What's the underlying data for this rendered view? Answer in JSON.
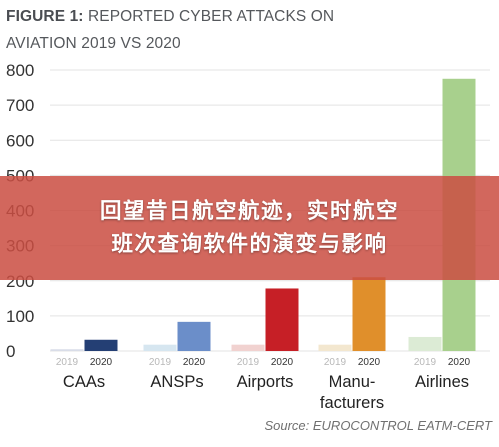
{
  "header": {
    "figure_label": "FIGURE 1:",
    "title_line1_rest": "REPORTED CYBER ATTACKS ON",
    "title_line2": "AVIATION 2019 VS 2020"
  },
  "source": "Source: EUROCONTROL EATM-CERT",
  "banner": {
    "line1": "回望昔日航空航迹，实时航空",
    "line2": "班次查询软件的演变与影响",
    "color": "#cb4e42"
  },
  "chart_data": {
    "type": "bar",
    "title": "FIGURE 1: REPORTED CYBER ATTACKS ON AVIATION 2019 VS 2020",
    "categories": [
      [
        "CAAs"
      ],
      [
        "ANSPs"
      ],
      [
        "Airports"
      ],
      [
        "Manu-",
        "facturers"
      ],
      [
        "Airlines"
      ]
    ],
    "year_labels": [
      "2019",
      "2020"
    ],
    "series": [
      {
        "name": "2019",
        "values": [
          5,
          18,
          18,
          18,
          40
        ]
      },
      {
        "name": "2020",
        "values": [
          32,
          83,
          178,
          210,
          775
        ]
      }
    ],
    "colors_2019": [
      "#d9dde8",
      "#d6e6f0",
      "#f1d2d0",
      "#f3e7cf",
      "#dcebd5"
    ],
    "colors_2020": [
      "#243f74",
      "#6b8ec9",
      "#c61f26",
      "#e08f2b",
      "#a8d08d"
    ],
    "ylim": [
      0,
      800
    ],
    "yticks": [
      0,
      100,
      200,
      300,
      400,
      500,
      600,
      700,
      800
    ],
    "grid": true,
    "xlabel": "",
    "ylabel": ""
  }
}
